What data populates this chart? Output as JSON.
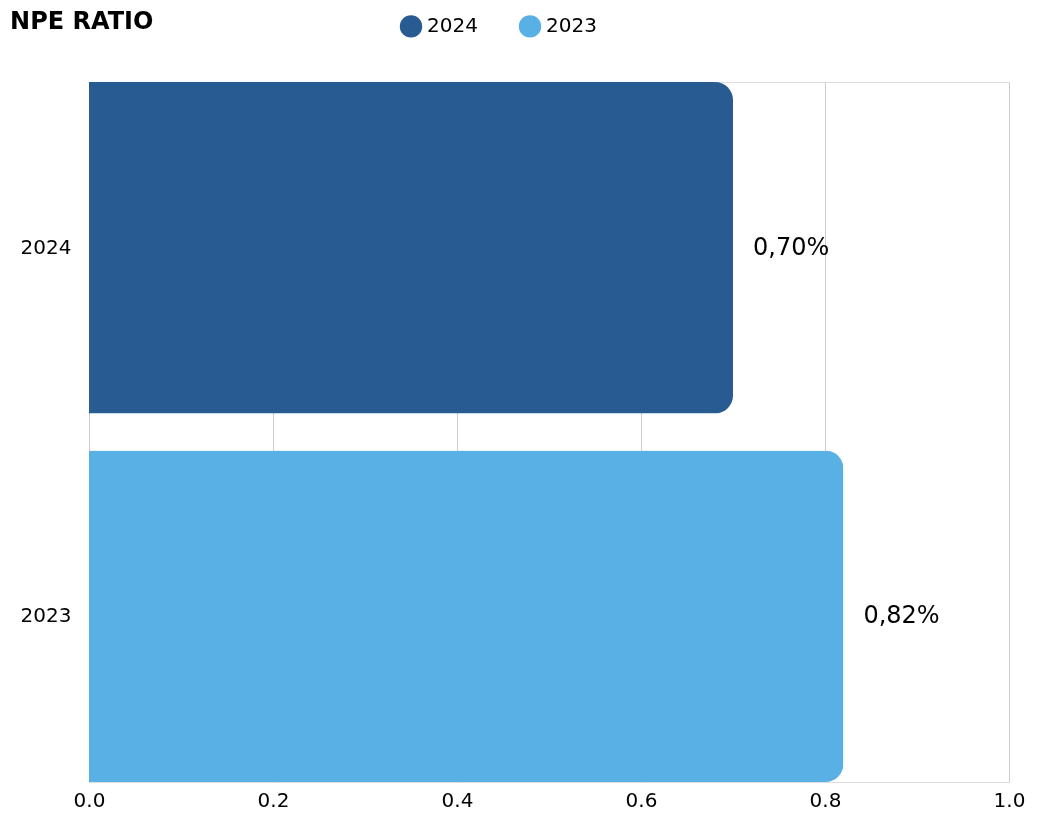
{
  "chart_data": {
    "type": "bar",
    "orientation": "horizontal",
    "title": "NPE RATIO",
    "categories": [
      "2024",
      "2023"
    ],
    "series": [
      {
        "name": "2024",
        "color": "#285b91",
        "values": [
          0.7,
          null
        ],
        "value_labels": [
          "0,70%",
          null
        ]
      },
      {
        "name": "2023",
        "color": "#58b0e5",
        "values": [
          null,
          0.82
        ],
        "value_labels": [
          null,
          "0,82%"
        ]
      }
    ],
    "xlim": [
      0,
      1.0
    ],
    "xticks": [
      {
        "value": 0,
        "label": "0.0"
      },
      0.2,
      0.4,
      0.6,
      0.8,
      {
        "value": 1.0,
        "label": "1.0"
      }
    ],
    "grid": "x",
    "legend": "top"
  }
}
